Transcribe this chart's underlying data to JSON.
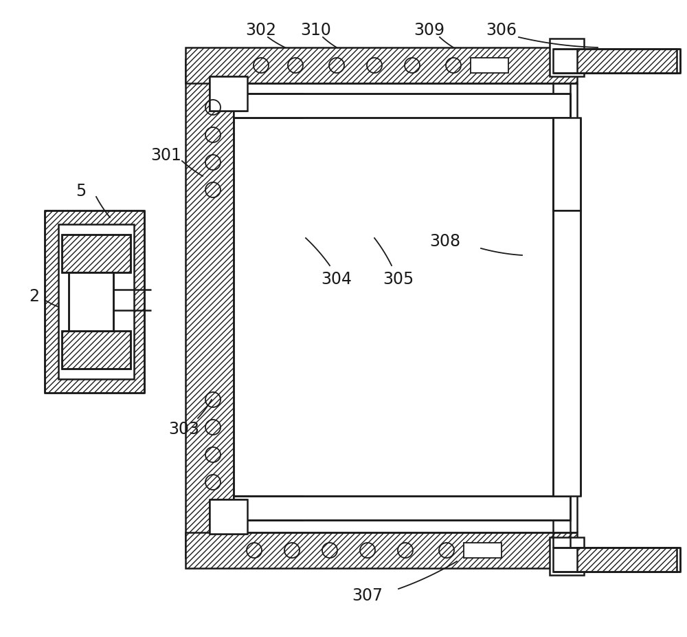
{
  "bg_color": "#ffffff",
  "line_color": "#1a1a1a",
  "lw": 1.8,
  "lw_thin": 1.3
}
